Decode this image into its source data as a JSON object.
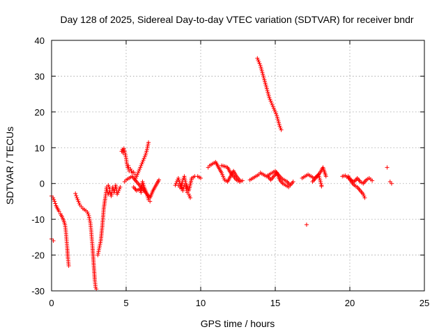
{
  "chart_data": {
    "type": "scatter",
    "title": "Day 128 of 2025, Sidereal Day-to-day VTEC variation (SDTVAR) for receiver bndr",
    "xlabel": "GPS time / hours",
    "ylabel": "SDTVAR / TECUs",
    "xlim": [
      0,
      25
    ],
    "ylim": [
      -30,
      40
    ],
    "xticks": [
      "0",
      "5",
      "10",
      "15",
      "20",
      "25"
    ],
    "yticks": [
      "-30",
      "-20",
      "-10",
      "0",
      "10",
      "20",
      "30",
      "40"
    ],
    "grid": true,
    "marker": "+",
    "color": "#ff0000",
    "series": [
      {
        "name": "seg1",
        "x": [
          0.0,
          0.12
        ],
        "y": [
          -15.5,
          -16.0
        ]
      },
      {
        "name": "seg2",
        "x": [
          0.0,
          0.1,
          0.2,
          0.3,
          0.4,
          0.5,
          0.6,
          0.7,
          0.8,
          0.9,
          0.95,
          1.0,
          1.05,
          1.1,
          1.15
        ],
        "y": [
          -3.5,
          -4.0,
          -5.0,
          -6.2,
          -7.0,
          -7.8,
          -8.5,
          -9.3,
          -10.2,
          -11.5,
          -13.0,
          -15.5,
          -18.0,
          -21.0,
          -23.0
        ]
      },
      {
        "name": "seg3",
        "x": [
          1.6,
          1.7,
          1.8,
          1.9,
          2.0,
          2.1,
          2.2,
          2.3,
          2.4,
          2.5,
          2.6,
          2.65,
          2.7,
          2.75,
          2.8,
          2.85,
          2.9,
          2.95,
          3.0
        ],
        "y": [
          -2.8,
          -4.0,
          -5.0,
          -6.0,
          -6.5,
          -7.0,
          -7.3,
          -7.6,
          -8.0,
          -9.0,
          -11.0,
          -13.0,
          -15.5,
          -18.0,
          -21.0,
          -24.0,
          -27.0,
          -29.0,
          -29.5
        ]
      },
      {
        "name": "seg4",
        "x": [
          3.1,
          3.2,
          3.3,
          3.4,
          3.5,
          3.6,
          3.65,
          3.7,
          3.8,
          3.9
        ],
        "y": [
          -20.0,
          -18.0,
          -16.0,
          -12.0,
          -7.0,
          -4.0,
          -2.5,
          -1.0,
          -0.5,
          -1.5
        ]
      },
      {
        "name": "seg5",
        "x": [
          3.7,
          3.8,
          3.9,
          4.0,
          4.1,
          4.2,
          4.3,
          4.4,
          4.5,
          4.6
        ],
        "y": [
          -1.5,
          -3.0,
          -2.0,
          -3.5,
          -1.0,
          -2.5,
          -0.5,
          -3.0,
          -2.0,
          -1.0
        ]
      },
      {
        "name": "seg6",
        "x": [
          4.7,
          4.75,
          4.8,
          4.85,
          4.9,
          4.95,
          5.0,
          5.05,
          5.1,
          5.15,
          5.2,
          5.3,
          5.4,
          5.5,
          5.6
        ],
        "y": [
          9.0,
          9.5,
          8.5,
          9.8,
          9.0,
          8.0,
          7.0,
          5.5,
          4.5,
          5.0,
          3.5,
          4.0,
          3.0,
          3.2,
          2.5
        ]
      },
      {
        "name": "seg7",
        "x": [
          4.9,
          5.0,
          5.2,
          5.4,
          5.6,
          5.8,
          6.0,
          6.2,
          6.4,
          6.6,
          6.8,
          7.0,
          7.2
        ],
        "y": [
          0.5,
          1.0,
          1.5,
          2.0,
          1.0,
          0.0,
          -1.0,
          -2.0,
          -3.0,
          -4.0,
          -2.0,
          -0.5,
          1.0
        ]
      },
      {
        "name": "seg8",
        "x": [
          5.6,
          5.7,
          5.8,
          5.9,
          6.0,
          6.1,
          6.2,
          6.3,
          6.4,
          6.5
        ],
        "y": [
          1.0,
          2.0,
          3.0,
          4.0,
          5.0,
          6.0,
          7.0,
          8.0,
          9.5,
          11.5
        ]
      },
      {
        "name": "seg9",
        "x": [
          5.5,
          5.7,
          5.9,
          6.0,
          6.1,
          6.2,
          6.4,
          6.5,
          6.6
        ],
        "y": [
          -1.0,
          -2.0,
          -1.5,
          -2.5,
          0.5,
          -1.0,
          -3.0,
          -4.5,
          -5.0
        ]
      },
      {
        "name": "seg10",
        "x": [
          8.3,
          8.4,
          8.5,
          8.6,
          8.7,
          8.8,
          8.9,
          9.0,
          9.2,
          9.4,
          9.6,
          9.8,
          10.0
        ],
        "y": [
          -0.5,
          0.5,
          1.5,
          0.0,
          -1.5,
          1.0,
          2.0,
          0.0,
          -2.0,
          1.5,
          2.0,
          2.0,
          1.5
        ]
      },
      {
        "name": "seg11",
        "x": [
          8.5,
          8.6,
          8.7,
          8.8,
          8.9,
          9.0,
          9.1,
          9.2,
          9.3
        ],
        "y": [
          -0.5,
          -1.0,
          0.0,
          -2.0,
          -0.5,
          -1.0,
          -2.5,
          -3.0,
          -4.0
        ]
      },
      {
        "name": "seg12",
        "x": [
          10.5,
          10.6,
          10.8,
          11.0,
          11.2,
          11.4,
          11.5,
          11.6,
          11.8,
          12.0,
          12.2,
          12.4,
          12.6
        ],
        "y": [
          4.5,
          5.0,
          5.5,
          6.0,
          4.5,
          3.0,
          2.0,
          1.0,
          0.5,
          2.0,
          3.5,
          2.0,
          1.0
        ]
      },
      {
        "name": "seg13",
        "x": [
          11.4,
          11.6,
          11.8,
          12.0,
          12.2,
          12.4,
          12.6,
          12.8
        ],
        "y": [
          5.0,
          4.8,
          4.5,
          3.0,
          2.0,
          1.0,
          0.5,
          0.8
        ]
      },
      {
        "name": "seg14",
        "x": [
          13.8,
          13.9,
          14.0,
          14.1,
          14.2,
          14.3,
          14.4,
          14.5,
          14.6,
          14.7,
          14.8,
          14.9,
          15.0,
          15.1,
          15.2,
          15.3,
          15.4
        ],
        "y": [
          35.0,
          34.0,
          33.0,
          31.5,
          30.0,
          28.5,
          27.0,
          25.5,
          24.0,
          23.0,
          22.0,
          21.0,
          20.0,
          19.0,
          17.5,
          16.0,
          15.0
        ]
      },
      {
        "name": "seg15",
        "x": [
          13.3,
          13.5,
          13.7,
          13.9,
          14.0,
          14.2,
          14.4,
          14.6,
          14.8,
          15.0,
          15.2,
          15.4,
          15.6,
          15.8,
          16.0,
          16.2
        ],
        "y": [
          1.0,
          1.5,
          2.0,
          2.5,
          3.0,
          2.5,
          2.0,
          2.5,
          3.0,
          3.5,
          2.5,
          1.5,
          1.0,
          0.5,
          -0.5,
          0.5
        ]
      },
      {
        "name": "seg16",
        "x": [
          14.5,
          14.7,
          14.9,
          15.1,
          15.3,
          15.5,
          15.7,
          15.9
        ],
        "y": [
          2.0,
          1.0,
          2.0,
          3.0,
          1.0,
          0.0,
          -0.5,
          -1.0
        ]
      },
      {
        "name": "seg17",
        "x": [
          16.8,
          17.0,
          17.2,
          17.4,
          17.6,
          17.8,
          18.0,
          18.2,
          18.4
        ],
        "y": [
          1.5,
          2.0,
          2.5,
          2.0,
          1.5,
          2.0,
          3.0,
          4.5,
          2.0
        ]
      },
      {
        "name": "seg18",
        "x": [
          17.5,
          17.7,
          17.9,
          18.0,
          18.1
        ],
        "y": [
          0.5,
          1.5,
          2.5,
          1.0,
          -0.5
        ]
      },
      {
        "name": "seg19",
        "x": [
          17.1
        ],
        "y": [
          -11.5
        ]
      },
      {
        "name": "seg20",
        "x": [
          18.1
        ],
        "y": [
          -0.8
        ]
      },
      {
        "name": "seg21",
        "x": [
          19.5,
          19.7,
          19.9,
          20.1,
          20.3,
          20.5,
          20.7,
          20.9,
          21.1,
          21.3,
          21.5
        ],
        "y": [
          2.0,
          2.2,
          1.5,
          1.0,
          0.5,
          1.5,
          0.5,
          0.0,
          1.0,
          1.5,
          0.8
        ]
      },
      {
        "name": "seg22",
        "x": [
          19.9,
          20.1,
          20.3,
          20.5,
          20.7,
          20.9,
          21.0
        ],
        "y": [
          2.0,
          0.5,
          -0.5,
          -1.0,
          -2.0,
          -3.0,
          -4.0
        ]
      },
      {
        "name": "seg23",
        "x": [
          22.5
        ],
        "y": [
          4.5
        ]
      },
      {
        "name": "seg24",
        "x": [
          22.7,
          22.8
        ],
        "y": [
          0.5,
          0.0
        ]
      }
    ]
  }
}
